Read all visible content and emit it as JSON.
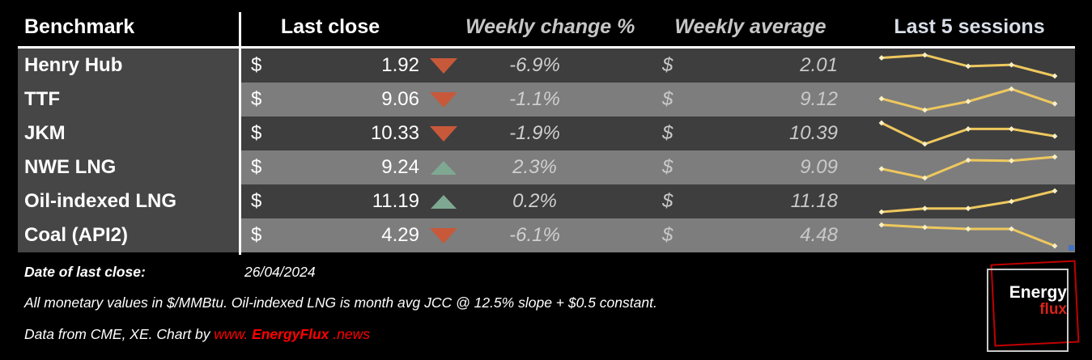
{
  "header": {
    "benchmark": "Benchmark",
    "last_close": "Last close",
    "weekly_change": "Weekly change %",
    "weekly_average": "Weekly average",
    "last_5_sessions": "Last 5 sessions"
  },
  "rows": [
    {
      "benchmark": "Henry Hub",
      "currency": "$",
      "last_close": "1.92",
      "direction": "down",
      "weekly_change": "-6.9%",
      "avg_currency": "$",
      "weekly_average": "2.01",
      "sessions": [
        2.05,
        2.07,
        1.99,
        2.0,
        1.92
      ]
    },
    {
      "benchmark": "TTF",
      "currency": "$",
      "last_close": "9.06",
      "direction": "down",
      "weekly_change": "-1.1%",
      "avg_currency": "$",
      "weekly_average": "9.12",
      "sessions": [
        9.15,
        8.95,
        9.1,
        9.32,
        9.06
      ]
    },
    {
      "benchmark": "JKM",
      "currency": "$",
      "last_close": "10.33",
      "direction": "down",
      "weekly_change": "-1.9%",
      "avg_currency": "$",
      "weekly_average": "10.39",
      "sessions": [
        10.55,
        10.2,
        10.45,
        10.45,
        10.33
      ]
    },
    {
      "benchmark": "NWE LNG",
      "currency": "$",
      "last_close": "9.24",
      "direction": "up",
      "weekly_change": "2.3%",
      "avg_currency": "$",
      "weekly_average": "9.09",
      "sessions": [
        9.02,
        8.85,
        9.18,
        9.17,
        9.24
      ]
    },
    {
      "benchmark": "Oil-indexed LNG",
      "currency": "$",
      "last_close": "11.19",
      "direction": "up",
      "weekly_change": "0.2%",
      "avg_currency": "$",
      "weekly_average": "11.18",
      "sessions": [
        11.15,
        11.16,
        11.16,
        11.18,
        11.21
      ]
    },
    {
      "benchmark": "Coal (API2)",
      "currency": "$",
      "last_close": "4.29",
      "direction": "down",
      "weekly_change": "-6.1%",
      "avg_currency": "$",
      "weekly_average": "4.48",
      "sessions": [
        4.55,
        4.52,
        4.5,
        4.5,
        4.29
      ]
    }
  ],
  "footer": {
    "date_label": "Date of last close:",
    "date_value": "26/04/2024",
    "note": "All monetary values in $/MMBtu. Oil-indexed LNG is month avg JCC @ 12.5% slope + $0.5 constant.",
    "source_prefix": "Data from CME, XE. Chart by ",
    "url_www": "www.",
    "url_brand": "EnergyFlux",
    "url_tld": ".news"
  },
  "logo": {
    "line1": "Energy",
    "line2": "flux"
  },
  "colors": {
    "background": "#000000",
    "row_dark": "#3e3e3e",
    "row_light": "#7d7d7d",
    "benchmark_col": "#464646",
    "down_triangle": "#c7593a",
    "up_triangle": "#7fa893",
    "sparkline": "#eec85e",
    "sparkline_marker": "#faf0c4",
    "accent_red": "#ff0000",
    "logo_red": "#c00000"
  },
  "chart_data": {
    "type": "table",
    "title": "",
    "columns": [
      "Benchmark",
      "Last close",
      "Weekly change %",
      "Weekly average",
      "Last 5 sessions"
    ],
    "units": "$/MMBtu",
    "date_of_last_close": "26/04/2024",
    "rows": [
      {
        "benchmark": "Henry Hub",
        "last_close": 1.92,
        "weekly_change_pct": -6.9,
        "weekly_average": 2.01,
        "last_5_sessions_estimated": [
          2.05,
          2.07,
          1.99,
          2.0,
          1.92
        ]
      },
      {
        "benchmark": "TTF",
        "last_close": 9.06,
        "weekly_change_pct": -1.1,
        "weekly_average": 9.12,
        "last_5_sessions_estimated": [
          9.15,
          8.95,
          9.1,
          9.32,
          9.06
        ]
      },
      {
        "benchmark": "JKM",
        "last_close": 10.33,
        "weekly_change_pct": -1.9,
        "weekly_average": 10.39,
        "last_5_sessions_estimated": [
          10.55,
          10.2,
          10.45,
          10.45,
          10.33
        ]
      },
      {
        "benchmark": "NWE LNG",
        "last_close": 9.24,
        "weekly_change_pct": 2.3,
        "weekly_average": 9.09,
        "last_5_sessions_estimated": [
          9.02,
          8.85,
          9.18,
          9.17,
          9.24
        ]
      },
      {
        "benchmark": "Oil-indexed LNG",
        "last_close": 11.19,
        "weekly_change_pct": 0.2,
        "weekly_average": 11.18,
        "last_5_sessions_estimated": [
          11.15,
          11.16,
          11.16,
          11.18,
          11.21
        ]
      },
      {
        "benchmark": "Coal (API2)",
        "last_close": 4.29,
        "weekly_change_pct": -6.1,
        "weekly_average": 4.48,
        "last_5_sessions_estimated": [
          4.55,
          4.52,
          4.5,
          4.5,
          4.29
        ]
      }
    ],
    "sparkline_style": {
      "type": "line",
      "markers": "diamond",
      "note": "session values estimated from sparkline pixel positions"
    }
  }
}
